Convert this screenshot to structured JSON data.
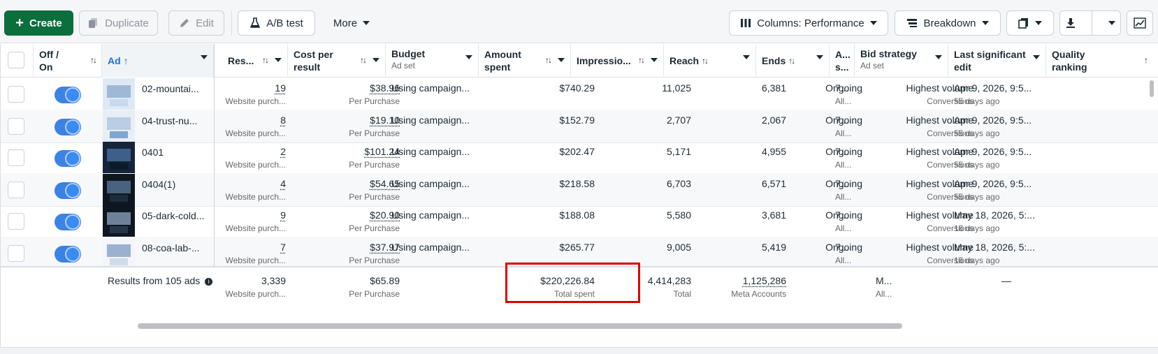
{
  "toolbar": {
    "create_label": "Create",
    "duplicate_label": "Duplicate",
    "edit_label": "Edit",
    "ab_test_label": "A/B test",
    "more_label": "More",
    "columns_label": "Columns: Performance",
    "breakdown_label": "Breakdown"
  },
  "columns": {
    "offon": "Off / On",
    "ad": "Ad",
    "results": "Res...",
    "cost_per_result": "Cost per result",
    "budget": "Budget",
    "budget_sub": "Ad set",
    "amount_spent": "Amount spent",
    "impressions": "Impressio...",
    "reach": "Reach",
    "ends": "Ends",
    "attribution": "A... s...",
    "bid_strategy": "Bid strategy",
    "bid_strategy_sub": "Ad set",
    "last_edit": "Last significant edit",
    "quality": "Quality ranking"
  },
  "rows": [
    {
      "ad": "02-mountai...",
      "results": "19",
      "results_type": "Website purch...",
      "cpr": "$38.96",
      "cpr_type": "Per Purchase",
      "budget": "Using campaign...",
      "spent": "$740.29",
      "impressions": "11,025",
      "reach": "6,381",
      "ends": "Ongoing",
      "attr": "7...",
      "attr_sub": "All...",
      "bid": "Highest volume",
      "bid_sub": "Conversions",
      "edit": "Apr 9, 2026, 9:5...",
      "edit_ago": "55 days ago"
    },
    {
      "ad": "04-trust-nu...",
      "results": "8",
      "results_type": "Website purch...",
      "cpr": "$19.10",
      "cpr_type": "Per Purchase",
      "budget": "Using campaign...",
      "spent": "$152.79",
      "impressions": "2,707",
      "reach": "2,067",
      "ends": "Ongoing",
      "attr": "7...",
      "attr_sub": "All...",
      "bid": "Highest volume",
      "bid_sub": "Conversions",
      "edit": "Apr 9, 2026, 9:5...",
      "edit_ago": "55 days ago"
    },
    {
      "ad": "0401",
      "results": "2",
      "results_type": "Website purch...",
      "cpr": "$101.24",
      "cpr_type": "Per Purchase",
      "budget": "Using campaign...",
      "spent": "$202.47",
      "impressions": "5,171",
      "reach": "4,955",
      "ends": "Ongoing",
      "attr": "7...",
      "attr_sub": "All...",
      "bid": "Highest volume",
      "bid_sub": "Conversions",
      "edit": "Apr 9, 2026, 9:5...",
      "edit_ago": "55 days ago"
    },
    {
      "ad": "0404(1)",
      "results": "4",
      "results_type": "Website purch...",
      "cpr": "$54.65",
      "cpr_type": "Per Purchase",
      "budget": "Using campaign...",
      "spent": "$218.58",
      "impressions": "6,703",
      "reach": "6,571",
      "ends": "Ongoing",
      "attr": "7...",
      "attr_sub": "All...",
      "bid": "Highest volume",
      "bid_sub": "Conversions",
      "edit": "Apr 9, 2026, 9:5...",
      "edit_ago": "55 days ago"
    },
    {
      "ad": "05-dark-cold...",
      "results": "9",
      "results_type": "Website purch...",
      "cpr": "$20.90",
      "cpr_type": "Per Purchase",
      "budget": "Using campaign...",
      "spent": "$188.08",
      "impressions": "5,580",
      "reach": "3,681",
      "ends": "Ongoing",
      "attr": "7...",
      "attr_sub": "All...",
      "bid": "Highest volume",
      "bid_sub": "Conversions",
      "edit": "May 18, 2026, 5:...",
      "edit_ago": "16 days ago"
    },
    {
      "ad": "08-coa-lab-...",
      "results": "7",
      "results_type": "Website purch...",
      "cpr": "$37.97",
      "cpr_type": "Per Purchase",
      "budget": "Using campaign...",
      "spent": "$265.77",
      "impressions": "9,005",
      "reach": "5,419",
      "ends": "Ongoing",
      "attr": "7...",
      "attr_sub": "All...",
      "bid": "Highest volume",
      "bid_sub": "Conversions",
      "edit": "May 18, 2026, 5:...",
      "edit_ago": "16 days ago"
    }
  ],
  "totals": {
    "label": "Results from 105 ads",
    "results": "3,339",
    "results_type": "Website purch...",
    "cpr": "$65.89",
    "cpr_type": "Per Purchase",
    "spent": "$220,226.84",
    "spent_type": "Total spent",
    "impressions": "4,414,283",
    "impressions_type": "Total",
    "reach": "1,125,286",
    "reach_type": "Meta Accounts",
    "attr": "M...",
    "attr_sub": "All...",
    "edit": "—"
  },
  "colors": {
    "accent_green": "#0a6e3d",
    "toggle_blue": "#1877f2",
    "highlight_red": "#e10000"
  },
  "icons": [
    "plus-icon",
    "duplicate-icon",
    "pencil-icon",
    "flask-icon",
    "columns-icon",
    "breakdown-icon",
    "reports-icon",
    "download-icon",
    "chart-icon",
    "sort-icon",
    "info-icon"
  ]
}
